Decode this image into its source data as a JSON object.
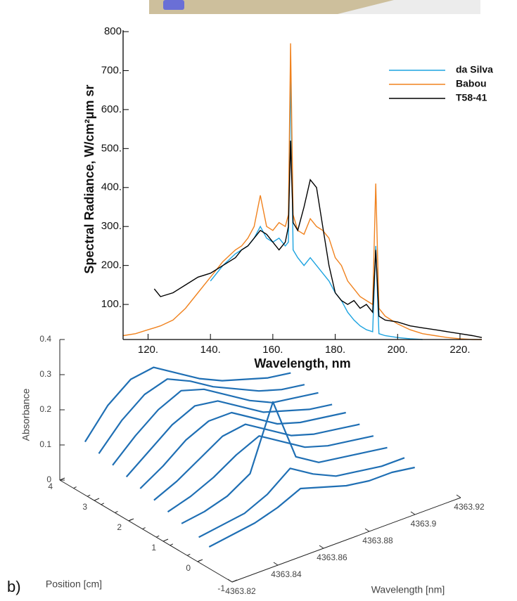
{
  "chart_data": [
    {
      "type": "line",
      "xlabel": "Wavelength, nm",
      "ylabel": "Spectral Radiance, W/cm²μm sr",
      "x": [
        112,
        116,
        120,
        122,
        124,
        128,
        132,
        136,
        140,
        144,
        148,
        150,
        152,
        154,
        156,
        158,
        160,
        162,
        164,
        165,
        165.7,
        166.5,
        168,
        170,
        172,
        174,
        176,
        178,
        180,
        182,
        184,
        186,
        188,
        190,
        192,
        193,
        194,
        196,
        200,
        204,
        208,
        212,
        216,
        220,
        224,
        227
      ],
      "series": [
        {
          "name": "da Silva",
          "color": "#1ca3e0",
          "values": [
            null,
            null,
            null,
            null,
            null,
            null,
            null,
            null,
            160,
            200,
            230,
            240,
            250,
            270,
            300,
            270,
            260,
            270,
            250,
            260,
            700,
            240,
            220,
            200,
            220,
            200,
            180,
            160,
            130,
            110,
            80,
            60,
            45,
            35,
            30,
            250,
            25,
            20,
            15,
            12,
            10,
            null,
            null,
            null,
            null,
            null
          ]
        },
        {
          "name": "Babou",
          "color": "#f0821e",
          "values": [
            20,
            25,
            35,
            40,
            45,
            60,
            90,
            130,
            170,
            210,
            240,
            250,
            270,
            300,
            380,
            300,
            290,
            310,
            300,
            330,
            770,
            330,
            290,
            280,
            320,
            300,
            290,
            270,
            220,
            200,
            160,
            140,
            120,
            110,
            100,
            410,
            90,
            70,
            50,
            35,
            25,
            20,
            15,
            12,
            10,
            10
          ]
        },
        {
          "name": "T58-41",
          "color": "#000000",
          "values": [
            null,
            null,
            null,
            140,
            120,
            130,
            150,
            170,
            180,
            200,
            220,
            240,
            250,
            270,
            290,
            280,
            260,
            240,
            260,
            300,
            520,
            310,
            290,
            350,
            420,
            400,
            300,
            200,
            130,
            110,
            100,
            110,
            90,
            100,
            80,
            240,
            70,
            60,
            55,
            45,
            40,
            35,
            30,
            25,
            20,
            15
          ]
        }
      ],
      "xlim": [
        112,
        227
      ],
      "ylim": [
        10,
        800
      ],
      "xticks": [
        {
          "value": 120,
          "label": "120."
        },
        {
          "value": 140,
          "label": "140."
        },
        {
          "value": 160,
          "label": "160."
        },
        {
          "value": 180,
          "label": "180."
        },
        {
          "value": 200,
          "label": "200."
        },
        {
          "value": 220,
          "label": "220."
        }
      ],
      "yticks": [
        {
          "value": 100,
          "label": "100."
        },
        {
          "value": 200,
          "label": "200."
        },
        {
          "value": 300,
          "label": "300."
        },
        {
          "value": 400,
          "label": "400."
        },
        {
          "value": 500,
          "label": "500."
        },
        {
          "value": 600,
          "label": "600."
        },
        {
          "value": 700,
          "label": "700."
        },
        800
      ],
      "legend": "upper right"
    },
    {
      "type": "line3d",
      "panel_label": "b)",
      "xlabel": "Wavelength [nm]",
      "ylabel": "Position [cm]",
      "zlabel": "Absorbance",
      "x": [
        4363.825,
        4363.835,
        4363.845,
        4363.855,
        4363.865,
        4363.875,
        4363.885,
        4363.895,
        4363.905,
        4363.915
      ],
      "xlim": [
        4363.82,
        4363.92
      ],
      "ylim": [
        -1,
        4
      ],
      "zlim": [
        0,
        0.4
      ],
      "xticks": [
        4363.82,
        4363.84,
        4363.86,
        4363.88,
        4363.9,
        4363.92
      ],
      "yticks": [
        -1,
        0,
        1,
        2,
        3,
        4
      ],
      "zticks": [
        0,
        0.1,
        0.2,
        0.3,
        0.4
      ],
      "series": [
        {
          "position": 3.6,
          "color": "#1f6fb4",
          "values": [
            0.12,
            0.2,
            0.25,
            0.26,
            0.22,
            0.18,
            0.15,
            0.13,
            0.11,
            0.1
          ]
        },
        {
          "position": 3.2,
          "color": "#1f6fb4",
          "values": [
            0.11,
            0.18,
            0.23,
            0.25,
            0.22,
            0.18,
            0.15,
            0.12,
            0.1,
            0.09
          ]
        },
        {
          "position": 2.8,
          "color": "#1f6fb4",
          "values": [
            0.1,
            0.16,
            0.21,
            0.24,
            0.22,
            0.18,
            0.14,
            0.11,
            0.1,
            0.09
          ]
        },
        {
          "position": 2.4,
          "color": "#1f6fb4",
          "values": [
            0.09,
            0.14,
            0.19,
            0.22,
            0.21,
            0.17,
            0.13,
            0.11,
            0.09,
            0.08
          ]
        },
        {
          "position": 2.0,
          "color": "#1f6fb4",
          "values": [
            0.08,
            0.12,
            0.17,
            0.2,
            0.2,
            0.16,
            0.12,
            0.1,
            0.09,
            0.08
          ]
        },
        {
          "position": 1.6,
          "color": "#1f6fb4",
          "values": [
            0.07,
            0.1,
            0.14,
            0.18,
            0.19,
            0.15,
            0.11,
            0.09,
            0.08,
            0.07
          ]
        },
        {
          "position": 1.2,
          "color": "#1f6fb4",
          "values": [
            0.06,
            0.08,
            0.11,
            0.15,
            0.18,
            0.14,
            0.1,
            0.08,
            0.07,
            0.06
          ]
        },
        {
          "position": 0.8,
          "color": "#1f6fb4",
          "values": [
            0.05,
            0.06,
            0.08,
            0.12,
            0.3,
            0.12,
            0.08,
            0.07,
            0.06,
            0.05
          ]
        },
        {
          "position": 0.3,
          "color": "#1f6fb4",
          "values": [
            0.04,
            0.05,
            0.06,
            0.09,
            0.14,
            0.1,
            0.07,
            0.06,
            0.05,
            0.05
          ]
        },
        {
          "position": 0,
          "color": "#1f6fb4",
          "values": [
            0.03,
            0.04,
            0.05,
            0.07,
            0.1,
            0.08,
            0.06,
            0.05,
            0.05,
            0.04
          ]
        }
      ]
    }
  ]
}
